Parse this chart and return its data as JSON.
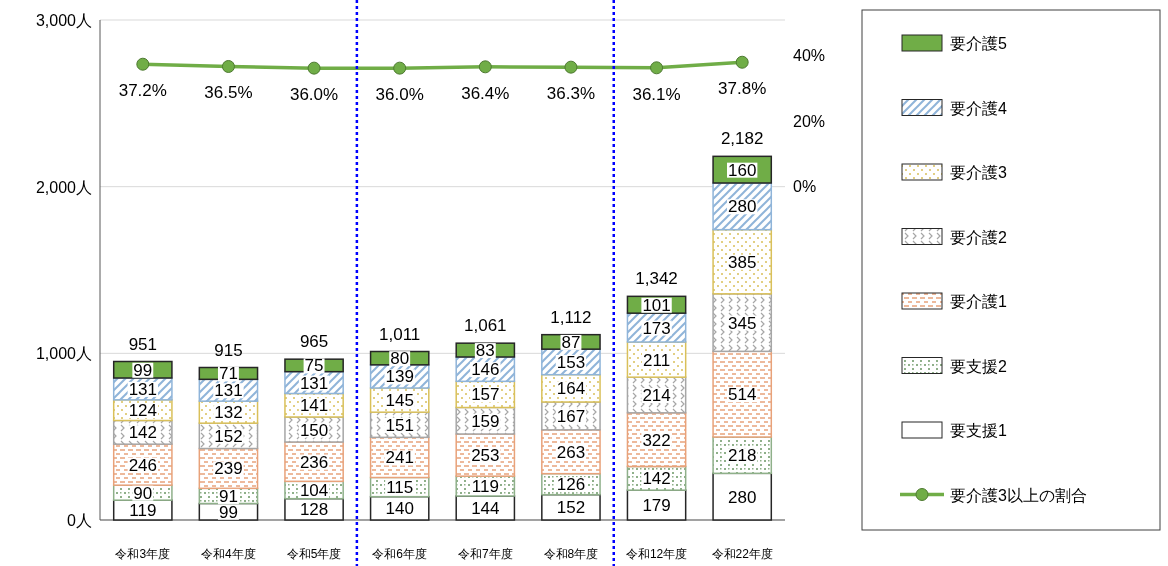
{
  "chart_data": {
    "type": "bar",
    "stacked": true,
    "categories": [
      "令和3年度",
      "令和4年度",
      "令和5年度",
      "令和6年度",
      "令和7年度",
      "令和8年度",
      "令和12年度",
      "令和22年度"
    ],
    "series": [
      {
        "name": "要支援1",
        "color": "#ffffff",
        "values": [
          119,
          99,
          128,
          140,
          144,
          152,
          179,
          280
        ]
      },
      {
        "name": "要支援2",
        "color": "#8fb08a",
        "values": [
          90,
          91,
          104,
          115,
          119,
          126,
          142,
          218
        ]
      },
      {
        "name": "要介護1",
        "color": "#e8a27a",
        "values": [
          246,
          239,
          236,
          241,
          253,
          263,
          322,
          514
        ]
      },
      {
        "name": "要介護2",
        "color": "#a6a6a6",
        "values": [
          142,
          152,
          150,
          151,
          159,
          167,
          214,
          345
        ]
      },
      {
        "name": "要介護3",
        "color": "#d9c05a",
        "values": [
          124,
          132,
          141,
          145,
          157,
          164,
          211,
          385
        ]
      },
      {
        "name": "要介護4",
        "color": "#8fb4d9",
        "values": [
          131,
          131,
          131,
          139,
          146,
          153,
          173,
          280
        ]
      },
      {
        "name": "要介護5",
        "color": "#70ad47",
        "values": [
          99,
          71,
          75,
          80,
          83,
          87,
          101,
          160
        ]
      },
      {
        "name": "要介護3以上の割合",
        "type": "line",
        "axis": "y2",
        "color": "#70ad47",
        "values": [
          37.2,
          36.5,
          36.0,
          36.0,
          36.4,
          36.3,
          36.1,
          37.8
        ],
        "value_labels": [
          "37.2%",
          "36.5%",
          "36.0%",
          "36.0%",
          "36.4%",
          "36.3%",
          "36.1%",
          "37.8%"
        ]
      }
    ],
    "totals": [
      "951",
      "915",
      "965",
      "1,011",
      "1,061",
      "1,112",
      "1,342",
      "2,182"
    ],
    "data_labels": true,
    "ylim": [
      0,
      3000
    ],
    "yticks": [
      {
        "value": 0,
        "label": "0人"
      },
      {
        "value": 1000,
        "label": "1,000人"
      },
      {
        "value": 2000,
        "label": "2,000人"
      },
      {
        "value": 3000,
        "label": "3,000人"
      }
    ],
    "y2lim": [
      -102,
      50.7
    ],
    "y2ticks": [
      {
        "value": 0,
        "label": "0%"
      },
      {
        "value": 20,
        "label": "20%"
      },
      {
        "value": 40,
        "label": "40%"
      }
    ],
    "grid": "y",
    "legend": "right",
    "marker": "circle"
  }
}
